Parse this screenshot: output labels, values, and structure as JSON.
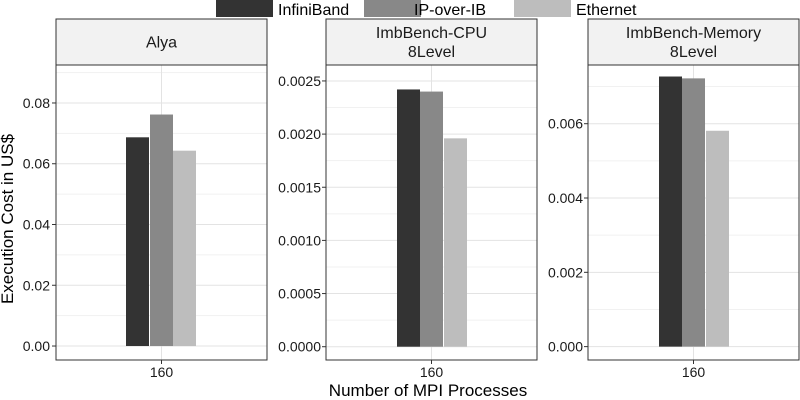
{
  "chart_data": {
    "type": "bar",
    "xlabel": "Number of MPI Processes",
    "ylabel": "Execution Cost in US$",
    "legend": {
      "position": "top",
      "entries": [
        {
          "name": "InfiniBand",
          "color": "#333333"
        },
        {
          "name": "IP-over-IB",
          "color": "#888888"
        },
        {
          "name": "Ethernet",
          "color": "#bdbdbd"
        }
      ]
    },
    "grid": true,
    "panels": [
      {
        "title_lines": [
          "Alya"
        ],
        "categories": [
          "160"
        ],
        "ylim": [
          -0.0046,
          0.0925
        ],
        "yticks": [
          0.0,
          0.02,
          0.04,
          0.06,
          0.08
        ],
        "ytick_labels": [
          "0.00",
          "0.02",
          "0.04",
          "0.06",
          "0.08"
        ],
        "series": [
          {
            "name": "InfiniBand",
            "values": [
              0.0687
            ]
          },
          {
            "name": "IP-over-IB",
            "values": [
              0.0762
            ]
          },
          {
            "name": "Ethernet",
            "values": [
              0.0643
            ]
          }
        ]
      },
      {
        "title_lines": [
          "ImbBench-CPU",
          "8Level"
        ],
        "categories": [
          "160"
        ],
        "ylim": [
          -0.000125,
          0.00265
        ],
        "yticks": [
          0.0,
          0.0005,
          0.001,
          0.0015,
          0.002,
          0.0025
        ],
        "ytick_labels": [
          "0.0000",
          "0.0005",
          "0.0010",
          "0.0015",
          "0.0020",
          "0.0025"
        ],
        "series": [
          {
            "name": "InfiniBand",
            "values": [
              0.00242
            ]
          },
          {
            "name": "IP-over-IB",
            "values": [
              0.0024
            ]
          },
          {
            "name": "Ethernet",
            "values": [
              0.00196
            ]
          }
        ]
      },
      {
        "title_lines": [
          "ImbBench-Memory",
          "8Level"
        ],
        "categories": [
          "160"
        ],
        "ylim": [
          -0.00036,
          0.00758
        ],
        "yticks": [
          0.0,
          0.002,
          0.004,
          0.006
        ],
        "ytick_labels": [
          "0.000",
          "0.002",
          "0.004",
          "0.006"
        ],
        "series": [
          {
            "name": "InfiniBand",
            "values": [
              0.00727
            ]
          },
          {
            "name": "IP-over-IB",
            "values": [
              0.00722
            ]
          },
          {
            "name": "Ethernet",
            "values": [
              0.00581
            ]
          }
        ]
      }
    ]
  }
}
